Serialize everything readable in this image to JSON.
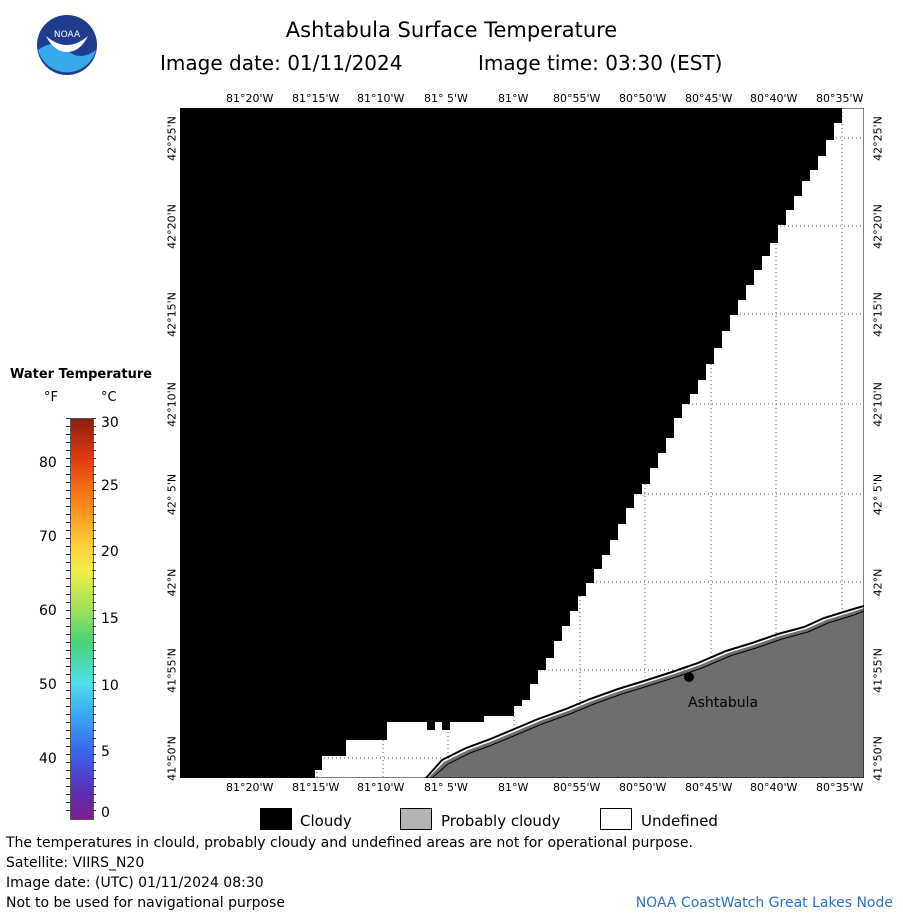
{
  "header": {
    "title": "Ashtabula Surface Temperature",
    "image_date": "Image date: 01/11/2024",
    "image_time": "Image time: 03:30 (EST)"
  },
  "logo": {
    "text": "NOAA",
    "colors": {
      "dark": "#1f3c8f",
      "light": "#39a8e8"
    }
  },
  "legend": {
    "title": "Water Temperature",
    "unit_f": "°F",
    "unit_c": "°C",
    "f_ticks": [
      "80",
      "70",
      "60",
      "50",
      "40"
    ],
    "c_ticks": [
      "30",
      "25",
      "20",
      "15",
      "10",
      "5",
      "0"
    ]
  },
  "map": {
    "lon_labels": [
      "81°20'W",
      "81°15'W",
      "81°10'W",
      "81° 5'W",
      "81°W",
      "80°55'W",
      "80°50'W",
      "80°45'W",
      "80°40'W",
      "80°35'W"
    ],
    "lat_labels": [
      "42°25'N",
      "42°20'N",
      "42°15'N",
      "42°10'N",
      "42° 5'N",
      "42°N",
      "41°55'N",
      "41°50'N"
    ],
    "city": "Ashtabula",
    "colors": {
      "cloudy": "#000000",
      "probably_cloudy": "#6e6e6e",
      "undefined": "#ffffff"
    }
  },
  "cloud_legend": {
    "cloudy": "Cloudy",
    "probably_cloudy": "Probably cloudy",
    "undefined": "Undefined"
  },
  "footer": {
    "note": "The temperatures in clould, probably cloudy and undefined areas are not for operational purpose.",
    "satellite": "Satellite: VIIRS_N20",
    "utc_date": "Image date: (UTC) 01/11/2024  08:30",
    "nav_note": "Not to be used for navigational purpose",
    "node": "NOAA CoastWatch Great Lakes Node"
  }
}
